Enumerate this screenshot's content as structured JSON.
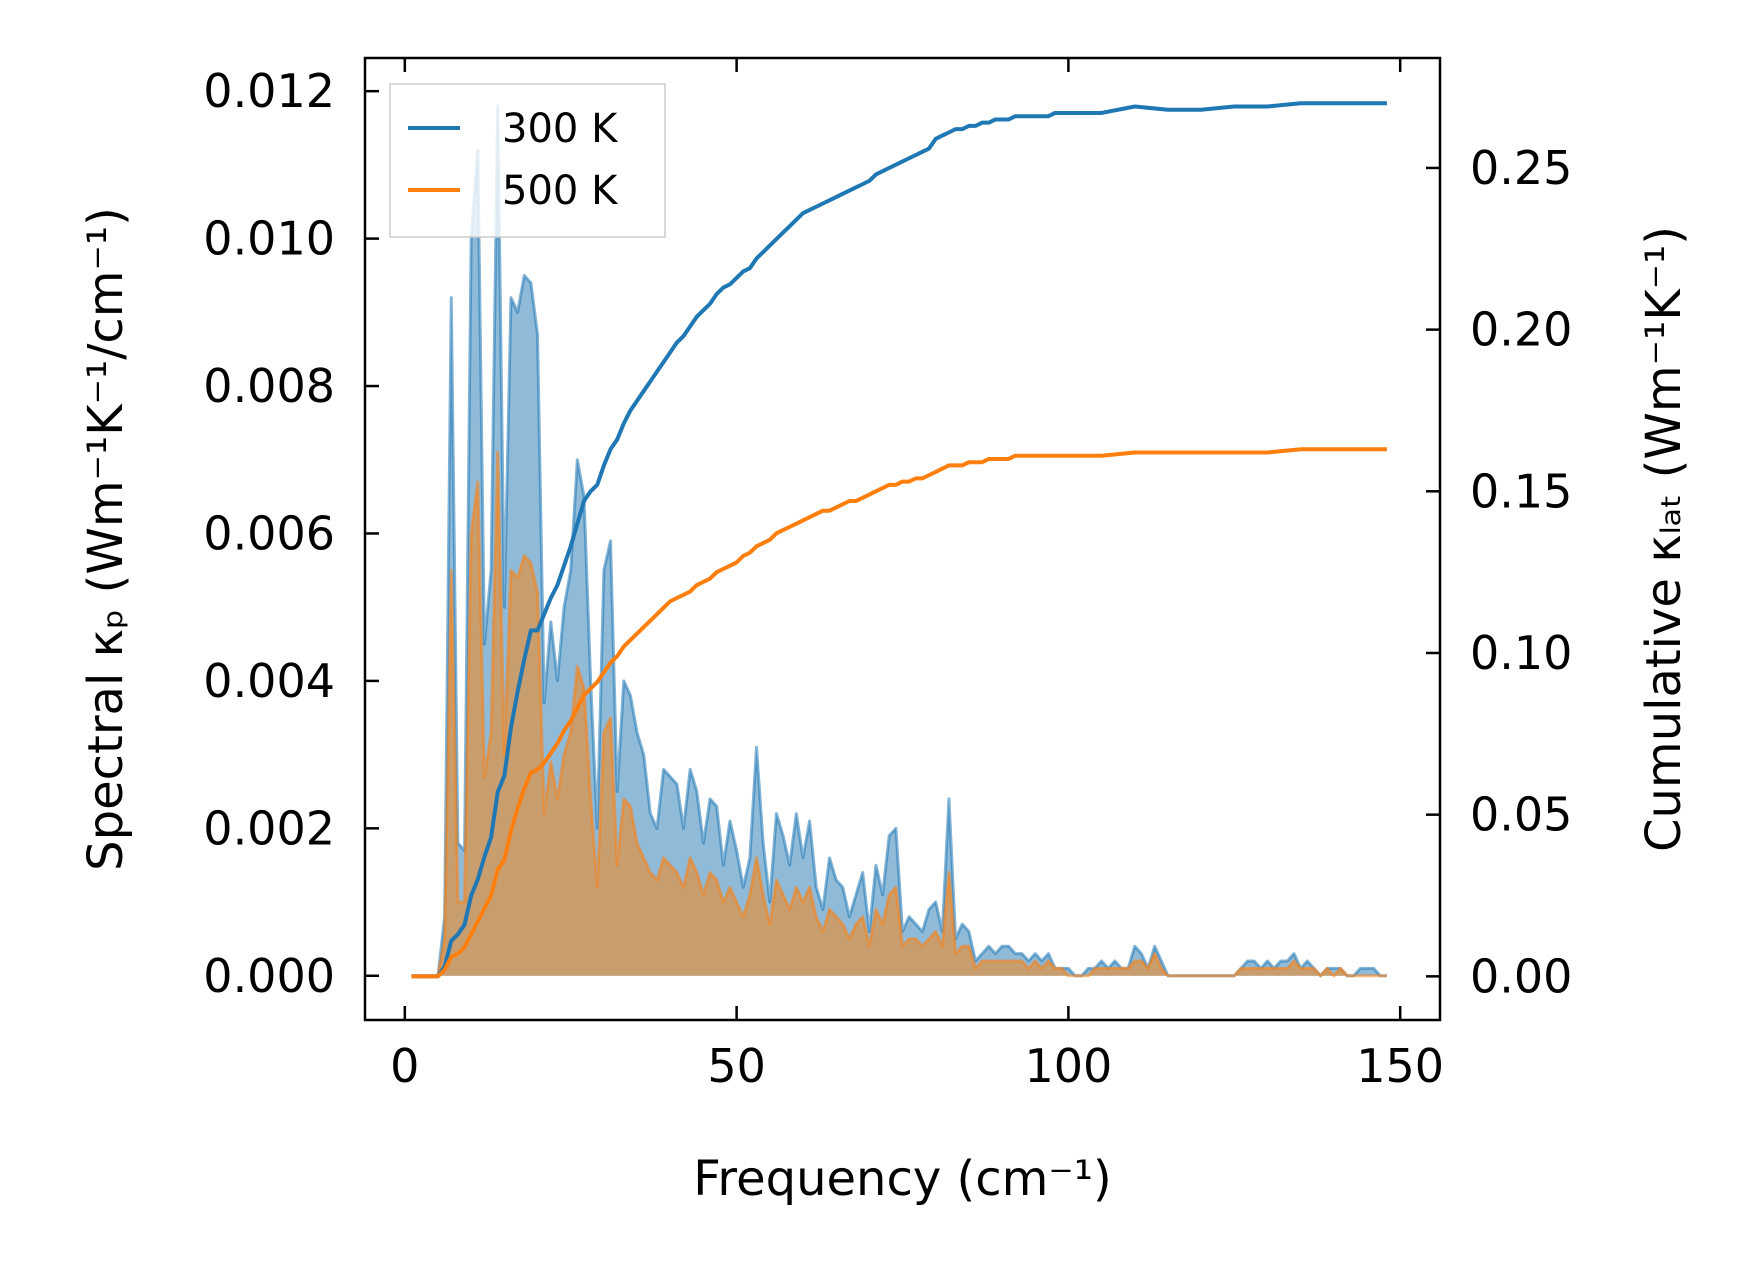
{
  "chart_data": {
    "type": "line",
    "xlabel": "Frequency (cm⁻¹)",
    "ylabel_left": "Spectral κₚ (Wm⁻¹K⁻¹/cm⁻¹)",
    "ylabel_right": "Cumulative κₗₐₜ (Wm⁻¹K⁻¹)",
    "xlim": [
      -6,
      156
    ],
    "ylim_left": [
      -0.0006,
      0.01245
    ],
    "ylim_right": [
      -0.0135,
      0.284
    ],
    "xticks": [
      0,
      50,
      100,
      150
    ],
    "xtick_labels": [
      "0",
      "50",
      "100",
      "150"
    ],
    "yticks_left": [
      0,
      0.002,
      0.004,
      0.006,
      0.008,
      0.01,
      0.012
    ],
    "ytick_labels_left": [
      "0.000",
      "0.002",
      "0.004",
      "0.006",
      "0.008",
      "0.010",
      "0.012"
    ],
    "yticks_right": [
      0,
      0.05,
      0.1,
      0.15,
      0.2,
      0.25
    ],
    "ytick_labels_right": [
      "0.00",
      "0.05",
      "0.10",
      "0.15",
      "0.20",
      "0.25"
    ],
    "legend_position": "top-left",
    "series": [
      {
        "name": "300 K",
        "color": "#1f77b4",
        "fill": "#1f77b4",
        "spectral_x": [
          1,
          2,
          3,
          4,
          5,
          6,
          7,
          8,
          9,
          10,
          11,
          12,
          13,
          14,
          15,
          16,
          17,
          18,
          19,
          20,
          21,
          22,
          23,
          24,
          25,
          26,
          27,
          28,
          29,
          30,
          31,
          32,
          33,
          34,
          35,
          36,
          37,
          38,
          39,
          40,
          41,
          42,
          43,
          44,
          45,
          46,
          47,
          48,
          49,
          50,
          51,
          52,
          53,
          54,
          55,
          56,
          57,
          58,
          59,
          60,
          61,
          62,
          63,
          64,
          65,
          66,
          67,
          68,
          69,
          70,
          71,
          72,
          73,
          74,
          75,
          76,
          77,
          78,
          79,
          80,
          81,
          82,
          83,
          84,
          85,
          86,
          87,
          88,
          89,
          90,
          91,
          92,
          93,
          94,
          95,
          96,
          97,
          98,
          99,
          100,
          101,
          102,
          103,
          104,
          105,
          106,
          107,
          108,
          109,
          110,
          111,
          112,
          113,
          114,
          115,
          116,
          117,
          118,
          119,
          120,
          121,
          122,
          123,
          124,
          125,
          126,
          127,
          128,
          129,
          130,
          131,
          132,
          133,
          134,
          135,
          136,
          137,
          138,
          139,
          140,
          141,
          142,
          143,
          144,
          145,
          146,
          147,
          148
        ],
        "spectral_y": [
          0,
          0,
          0,
          0,
          0,
          0.0008,
          0.0092,
          0.0018,
          0.0017,
          0.01,
          0.0112,
          0.0045,
          0.0055,
          0.0118,
          0.005,
          0.0092,
          0.009,
          0.0095,
          0.0094,
          0.0087,
          0.0037,
          0.0048,
          0.004,
          0.005,
          0.0055,
          0.007,
          0.0065,
          0.004,
          0.002,
          0.0055,
          0.0059,
          0.0025,
          0.004,
          0.0038,
          0.0033,
          0.003,
          0.0022,
          0.002,
          0.0028,
          0.0027,
          0.0026,
          0.002,
          0.0028,
          0.0025,
          0.0018,
          0.0024,
          0.0023,
          0.0015,
          0.0021,
          0.0017,
          0.0012,
          0.0016,
          0.0031,
          0.0018,
          0.001,
          0.0022,
          0.0019,
          0.0015,
          0.0022,
          0.0016,
          0.0021,
          0.0012,
          0.0009,
          0.0016,
          0.0013,
          0.0012,
          0.0008,
          0.0011,
          0.0014,
          0.0006,
          0.0015,
          0.0011,
          0.0019,
          0.002,
          0.0006,
          0.0008,
          0.0007,
          0.0006,
          0.0009,
          0.001,
          0.0006,
          0.0024,
          0.0005,
          0.0007,
          0.0006,
          0.0002,
          0.0003,
          0.0004,
          0.0003,
          0.0004,
          0.0004,
          0.0003,
          0.0003,
          0.0002,
          0.0003,
          0.0002,
          0.0003,
          0.0001,
          0.0001,
          0.0001,
          0.0,
          0.0,
          0.0001,
          0.0001,
          0.0002,
          0.0001,
          0.0002,
          0.0001,
          0.0001,
          0.0004,
          0.0003,
          0.0001,
          0.0004,
          0.0002,
          0.0,
          0,
          0,
          0,
          0,
          0,
          0,
          0,
          0,
          0,
          0,
          0.0001,
          0.0002,
          0.0002,
          0.0001,
          0.0002,
          0.0001,
          0.0002,
          0.0002,
          0.0003,
          0.0001,
          0.0002,
          0.0001,
          0.0,
          0.0001,
          0.0001,
          0.0001,
          0.0,
          0.0,
          0.0001,
          0.0001,
          0.0001,
          0.0,
          0.0
        ],
        "cumulative_x": [
          1,
          2,
          3,
          4,
          5,
          6,
          7,
          8,
          9,
          10,
          11,
          12,
          13,
          14,
          15,
          16,
          17,
          18,
          19,
          20,
          21,
          22,
          23,
          24,
          25,
          26,
          27,
          28,
          29,
          30,
          31,
          32,
          33,
          34,
          35,
          36,
          37,
          38,
          39,
          40,
          41,
          42,
          43,
          44,
          45,
          46,
          47,
          48,
          49,
          50,
          51,
          52,
          53,
          54,
          55,
          56,
          57,
          58,
          59,
          60,
          61,
          62,
          63,
          64,
          65,
          66,
          67,
          68,
          69,
          70,
          71,
          72,
          73,
          74,
          75,
          76,
          77,
          78,
          79,
          80,
          81,
          82,
          83,
          84,
          85,
          86,
          87,
          88,
          89,
          90,
          91,
          92,
          93,
          94,
          95,
          96,
          97,
          98,
          99,
          100,
          105,
          110,
          115,
          120,
          125,
          130,
          135,
          140,
          145,
          148
        ],
        "cumulative_y": [
          0,
          0,
          0,
          0,
          0,
          0.003,
          0.011,
          0.013,
          0.016,
          0.025,
          0.03,
          0.037,
          0.043,
          0.057,
          0.062,
          0.077,
          0.088,
          0.098,
          0.107,
          0.107,
          0.112,
          0.117,
          0.121,
          0.127,
          0.133,
          0.14,
          0.147,
          0.15,
          0.152,
          0.158,
          0.163,
          0.166,
          0.171,
          0.175,
          0.178,
          0.181,
          0.184,
          0.187,
          0.19,
          0.193,
          0.196,
          0.198,
          0.201,
          0.204,
          0.206,
          0.208,
          0.211,
          0.213,
          0.214,
          0.216,
          0.218,
          0.219,
          0.222,
          0.224,
          0.226,
          0.228,
          0.23,
          0.232,
          0.234,
          0.236,
          0.237,
          0.238,
          0.239,
          0.24,
          0.241,
          0.242,
          0.243,
          0.244,
          0.245,
          0.246,
          0.248,
          0.249,
          0.25,
          0.251,
          0.252,
          0.253,
          0.254,
          0.255,
          0.256,
          0.259,
          0.26,
          0.261,
          0.262,
          0.262,
          0.263,
          0.263,
          0.264,
          0.264,
          0.265,
          0.265,
          0.265,
          0.266,
          0.266,
          0.266,
          0.266,
          0.266,
          0.266,
          0.267,
          0.267,
          0.267,
          0.267,
          0.269,
          0.268,
          0.268,
          0.269,
          0.269,
          0.27,
          0.27,
          0.27,
          0.27
        ]
      },
      {
        "name": "500 K",
        "color": "#ff7f0e",
        "fill": "#d2995a",
        "spectral_x": [
          1,
          2,
          3,
          4,
          5,
          6,
          7,
          8,
          9,
          10,
          11,
          12,
          13,
          14,
          15,
          16,
          17,
          18,
          19,
          20,
          21,
          22,
          23,
          24,
          25,
          26,
          27,
          28,
          29,
          30,
          31,
          32,
          33,
          34,
          35,
          36,
          37,
          38,
          39,
          40,
          41,
          42,
          43,
          44,
          45,
          46,
          47,
          48,
          49,
          50,
          51,
          52,
          53,
          54,
          55,
          56,
          57,
          58,
          59,
          60,
          61,
          62,
          63,
          64,
          65,
          66,
          67,
          68,
          69,
          70,
          71,
          72,
          73,
          74,
          75,
          76,
          77,
          78,
          79,
          80,
          81,
          82,
          83,
          84,
          85,
          86,
          87,
          88,
          89,
          90,
          91,
          92,
          93,
          94,
          95,
          96,
          97,
          98,
          99,
          100,
          101,
          102,
          103,
          104,
          105,
          106,
          107,
          108,
          109,
          110,
          111,
          112,
          113,
          114,
          115,
          116,
          117,
          118,
          119,
          120,
          121,
          122,
          123,
          124,
          125,
          126,
          127,
          128,
          129,
          130,
          131,
          132,
          133,
          134,
          135,
          136,
          137,
          138,
          139,
          140,
          141,
          142,
          143,
          144,
          145,
          146,
          147,
          148
        ],
        "spectral_y": [
          0,
          0,
          0,
          0,
          0,
          0.0005,
          0.0055,
          0.001,
          0.001,
          0.006,
          0.0067,
          0.0027,
          0.0033,
          0.0071,
          0.003,
          0.0055,
          0.0054,
          0.0057,
          0.0056,
          0.0052,
          0.0022,
          0.0029,
          0.0024,
          0.003,
          0.0033,
          0.0042,
          0.0039,
          0.0024,
          0.0012,
          0.0033,
          0.0035,
          0.0015,
          0.0024,
          0.0023,
          0.0018,
          0.0016,
          0.0014,
          0.0013,
          0.0016,
          0.0015,
          0.0014,
          0.0012,
          0.0016,
          0.0014,
          0.0011,
          0.0014,
          0.0013,
          0.001,
          0.0012,
          0.001,
          0.0008,
          0.0011,
          0.0016,
          0.0011,
          0.0007,
          0.0013,
          0.0011,
          0.0009,
          0.0012,
          0.001,
          0.0012,
          0.0008,
          0.0006,
          0.0009,
          0.0008,
          0.0007,
          0.0005,
          0.0007,
          0.0008,
          0.0004,
          0.0009,
          0.0007,
          0.0011,
          0.0012,
          0.0004,
          0.0005,
          0.0005,
          0.0004,
          0.0005,
          0.0006,
          0.0004,
          0.0014,
          0.0003,
          0.0004,
          0.0004,
          0.0001,
          0.0002,
          0.0002,
          0.0002,
          0.0002,
          0.0002,
          0.0002,
          0.0002,
          0.0001,
          0.0002,
          0.0001,
          0.0002,
          0.0001,
          0.0001,
          0.0,
          0.0,
          0.0,
          0.0,
          0.0001,
          0.0001,
          0.0001,
          0.0001,
          0.0001,
          0.0001,
          0.0002,
          0.0002,
          0.0001,
          0.0003,
          0.0001,
          0.0,
          0,
          0,
          0,
          0,
          0,
          0,
          0,
          0,
          0,
          0,
          0.0001,
          0.0001,
          0.0001,
          0.0001,
          0.0001,
          0.0001,
          0.0001,
          0.0001,
          0.0002,
          0.0001,
          0.0001,
          0.0001,
          0.0,
          0.0001,
          0.0,
          0.0001,
          0.0,
          0.0,
          0.0,
          0.0,
          0.0,
          0.0,
          0.0
        ],
        "cumulative_x": [
          1,
          2,
          3,
          4,
          5,
          6,
          7,
          8,
          9,
          10,
          11,
          12,
          13,
          14,
          15,
          16,
          17,
          18,
          19,
          20,
          21,
          22,
          23,
          24,
          25,
          26,
          27,
          28,
          29,
          30,
          31,
          32,
          33,
          34,
          35,
          36,
          37,
          38,
          39,
          40,
          41,
          42,
          43,
          44,
          45,
          46,
          47,
          48,
          49,
          50,
          51,
          52,
          53,
          54,
          55,
          56,
          57,
          58,
          59,
          60,
          61,
          62,
          63,
          64,
          65,
          66,
          67,
          68,
          69,
          70,
          71,
          72,
          73,
          74,
          75,
          76,
          77,
          78,
          79,
          80,
          81,
          82,
          83,
          84,
          85,
          86,
          87,
          88,
          89,
          90,
          91,
          92,
          93,
          94,
          95,
          96,
          97,
          98,
          99,
          100,
          105,
          110,
          115,
          120,
          125,
          130,
          135,
          140,
          145,
          148
        ],
        "cumulative_y": [
          0,
          0,
          0,
          0,
          0,
          0.002,
          0.006,
          0.007,
          0.009,
          0.013,
          0.017,
          0.021,
          0.025,
          0.033,
          0.036,
          0.045,
          0.052,
          0.058,
          0.063,
          0.064,
          0.066,
          0.069,
          0.072,
          0.076,
          0.079,
          0.083,
          0.087,
          0.089,
          0.091,
          0.094,
          0.097,
          0.099,
          0.102,
          0.104,
          0.106,
          0.108,
          0.11,
          0.112,
          0.114,
          0.116,
          0.117,
          0.118,
          0.119,
          0.121,
          0.122,
          0.123,
          0.125,
          0.126,
          0.127,
          0.128,
          0.13,
          0.131,
          0.133,
          0.134,
          0.135,
          0.137,
          0.138,
          0.139,
          0.14,
          0.141,
          0.142,
          0.143,
          0.144,
          0.144,
          0.145,
          0.146,
          0.147,
          0.147,
          0.148,
          0.149,
          0.15,
          0.151,
          0.152,
          0.152,
          0.153,
          0.153,
          0.154,
          0.154,
          0.155,
          0.156,
          0.157,
          0.158,
          0.158,
          0.158,
          0.159,
          0.159,
          0.159,
          0.16,
          0.16,
          0.16,
          0.16,
          0.161,
          0.161,
          0.161,
          0.161,
          0.161,
          0.161,
          0.161,
          0.161,
          0.161,
          0.161,
          0.162,
          0.162,
          0.162,
          0.162,
          0.162,
          0.163,
          0.163,
          0.163,
          0.163
        ]
      }
    ]
  }
}
